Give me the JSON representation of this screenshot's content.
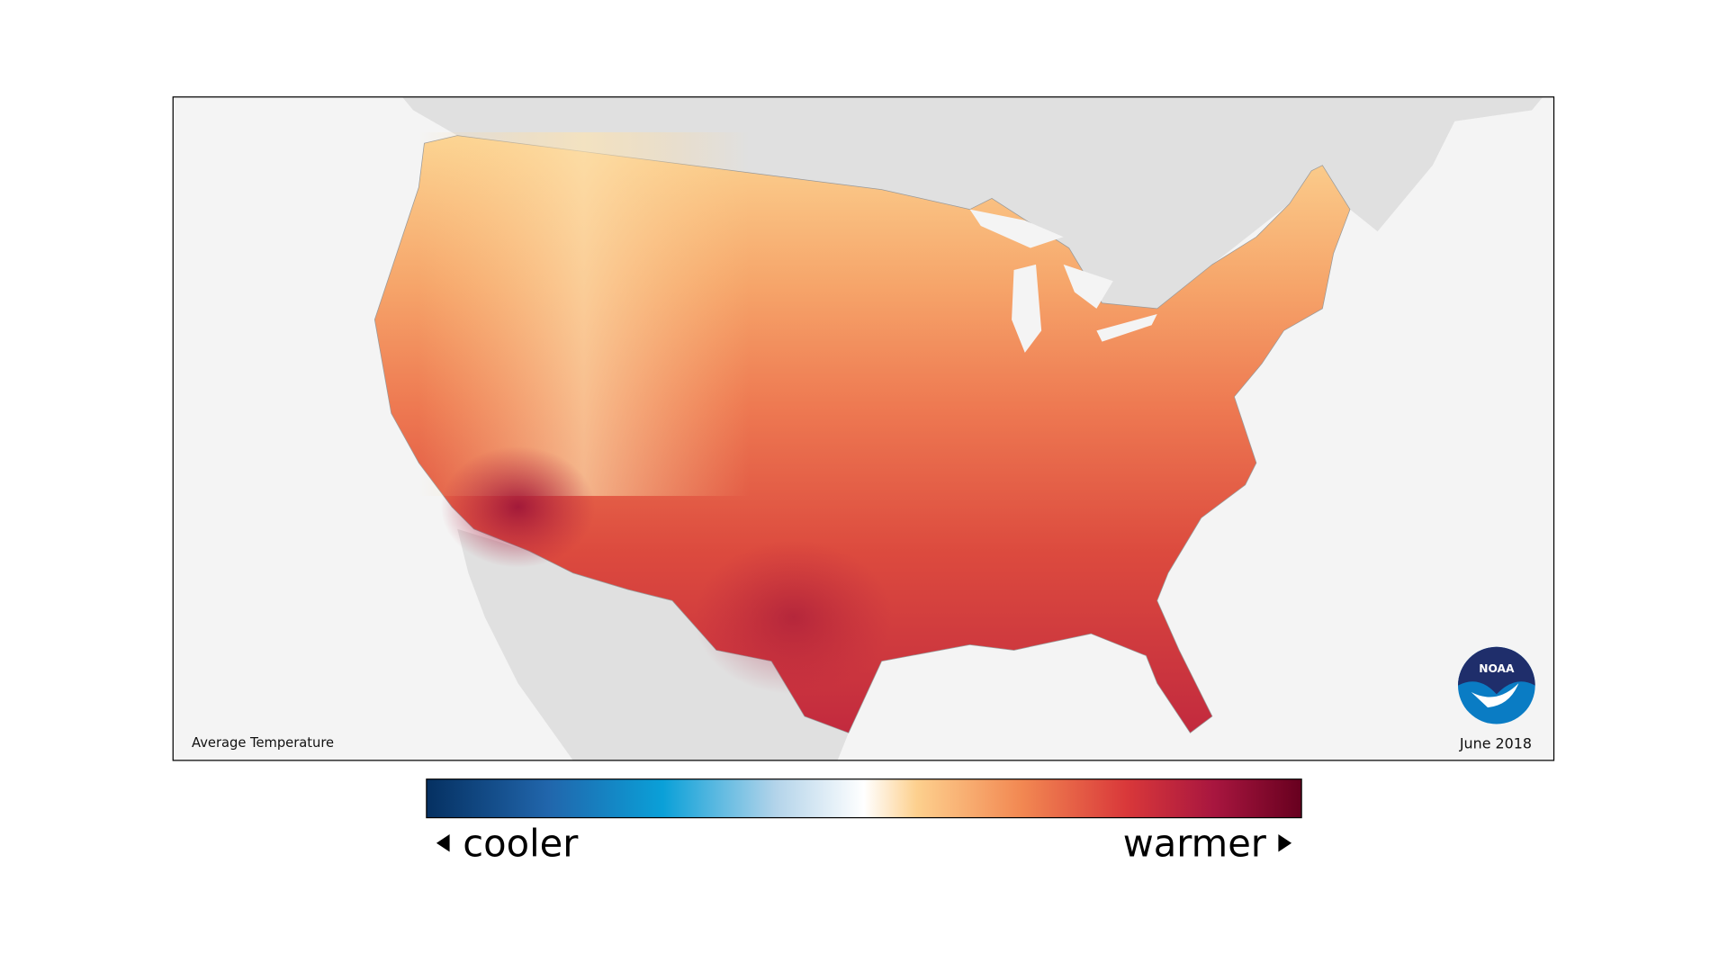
{
  "map": {
    "label": "Average Temperature",
    "date": "June 2018",
    "logo": "NOAA"
  },
  "legend": {
    "low": "cooler",
    "high": "warmer"
  }
}
